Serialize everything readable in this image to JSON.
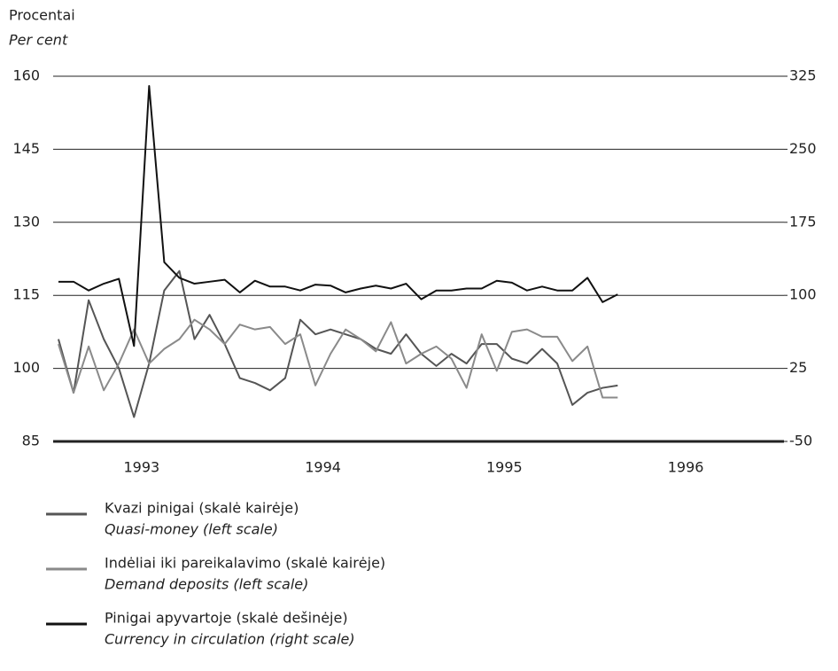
{
  "chart_data": {
    "type": "line",
    "ylabel": "Procentai",
    "ylabel_en": "Per cent",
    "xlim": [
      -0.35,
      48
    ],
    "xticks": [
      {
        "value": 5.5,
        "label": "1993"
      },
      {
        "value": 17.5,
        "label": "1994"
      },
      {
        "value": 29.5,
        "label": "1995"
      },
      {
        "value": 41.5,
        "label": "1996"
      }
    ],
    "ylim": [
      85,
      160
    ],
    "yticks": [
      85,
      100,
      115,
      130,
      145,
      160
    ],
    "y2lim": [
      -50,
      325
    ],
    "y2ticks": [
      -50,
      25,
      100,
      175,
      250,
      325
    ],
    "grid": true,
    "x": [
      0,
      1,
      2,
      3,
      4,
      5,
      6,
      7,
      8,
      9,
      10,
      11,
      12,
      13,
      14,
      15,
      16,
      17,
      18,
      19,
      20,
      21,
      22,
      23,
      24,
      25,
      26,
      27,
      28,
      29,
      30,
      31,
      32,
      33,
      34,
      35,
      36,
      37
    ],
    "series": [
      {
        "name": "Kvazi pinigai (skalė kairėje)",
        "name_en": "Quasi-money (left scale)",
        "color": "#555555",
        "values": [
          106,
          95,
          114,
          106,
          100,
          90,
          101,
          116,
          120,
          106,
          111,
          105,
          98,
          97,
          95.5,
          98,
          110,
          107,
          108,
          107,
          106,
          104,
          103,
          107,
          103,
          100.5,
          103,
          101,
          105,
          105,
          102,
          101,
          104,
          101,
          92.5,
          95,
          96,
          96.5
        ]
      },
      {
        "name": "Indėliai iki pareikalavimo (skalė kairėje)",
        "name_en": "Demand deposits (left scale)",
        "color": "#8a8a8a",
        "values": [
          105,
          95,
          104.5,
          95.5,
          101,
          108,
          101,
          104,
          106,
          110,
          108,
          105,
          109,
          108,
          108.5,
          105,
          107,
          96.5,
          103,
          108,
          106,
          103.5,
          109.5,
          101,
          103,
          104.5,
          102,
          96,
          107,
          99.5,
          107.5,
          108,
          106.5,
          106.5,
          101.5,
          104.5,
          94,
          94
        ]
      },
      {
        "name": "Pinigai apyvartoje (skalė dešinėje)",
        "name_en": "Currency in circulation (right scale)",
        "color": "#111111",
        "axis": "y2",
        "values": [
          114,
          114,
          105,
          112,
          117,
          48,
          315,
          134,
          118,
          112,
          114,
          116,
          103,
          115,
          109,
          109,
          105,
          111,
          110,
          103,
          107,
          110,
          107,
          112,
          96,
          105,
          105,
          107,
          107,
          115,
          113,
          105,
          109,
          105,
          105,
          118,
          93,
          101
        ]
      }
    ]
  }
}
